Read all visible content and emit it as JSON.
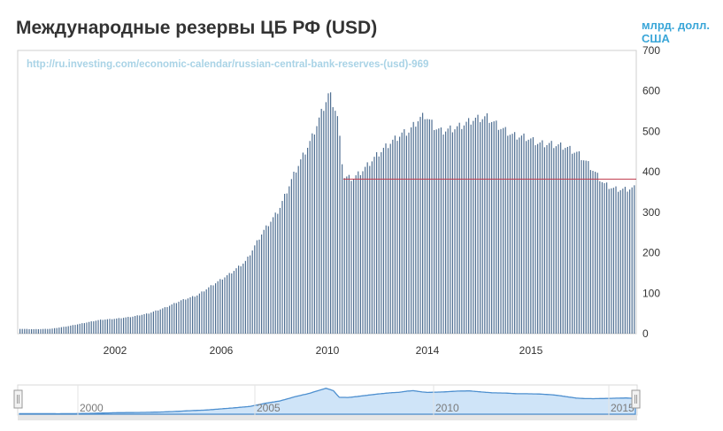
{
  "header": {
    "title": "Международные резервы ЦБ РФ (USD)",
    "unit_line1": "млрд. долл.",
    "unit_line2": "США",
    "watermark": "http://ru.investing.com/economic-calendar/russian-central-bank-reserves-(usd)-969"
  },
  "chart_data": {
    "type": "bar",
    "title": "Международные резервы ЦБ РФ (USD)",
    "ylabel": "млрд. долл. США",
    "ylim": [
      0,
      700
    ],
    "y_ticks": [
      0,
      100,
      200,
      300,
      400,
      500,
      600,
      700
    ],
    "x_ticks": [
      "2002",
      "2006",
      "2010",
      "2014",
      "2015"
    ],
    "x_range_years": [
      1999,
      2018
    ],
    "grid": false,
    "reference_line": {
      "value": 382,
      "color": "#c0394b"
    },
    "anchors": [
      [
        1999.0,
        12
      ],
      [
        1999.5,
        11
      ],
      [
        2000.0,
        12
      ],
      [
        2000.5,
        18
      ],
      [
        2001.0,
        26
      ],
      [
        2001.5,
        34
      ],
      [
        2002.0,
        37
      ],
      [
        2002.5,
        42
      ],
      [
        2003.0,
        50
      ],
      [
        2003.5,
        64
      ],
      [
        2004.0,
        82
      ],
      [
        2004.5,
        95
      ],
      [
        2005.0,
        122
      ],
      [
        2005.5,
        148
      ],
      [
        2006.0,
        180
      ],
      [
        2006.5,
        250
      ],
      [
        2007.0,
        305
      ],
      [
        2007.5,
        400
      ],
      [
        2008.0,
        480
      ],
      [
        2008.55,
        596
      ],
      [
        2008.8,
        540
      ],
      [
        2009.0,
        387
      ],
      [
        2009.3,
        384
      ],
      [
        2009.6,
        405
      ],
      [
        2010.0,
        440
      ],
      [
        2010.4,
        470
      ],
      [
        2010.8,
        495
      ],
      [
        2011.0,
        500
      ],
      [
        2011.3,
        530
      ],
      [
        2011.5,
        540
      ],
      [
        2011.8,
        510
      ],
      [
        2012.0,
        500
      ],
      [
        2012.5,
        510
      ],
      [
        2013.0,
        530
      ],
      [
        2013.4,
        535
      ],
      [
        2013.8,
        510
      ],
      [
        2014.2,
        490
      ],
      [
        2014.6,
        485
      ],
      [
        2015.0,
        470
      ],
      [
        2015.4,
        468
      ],
      [
        2015.8,
        462
      ],
      [
        2016.2,
        445
      ],
      [
        2016.5,
        420
      ],
      [
        2016.8,
        390
      ],
      [
        2017.0,
        370
      ],
      [
        2017.3,
        358
      ],
      [
        2017.6,
        356
      ],
      [
        2017.9,
        360
      ],
      [
        2018.1,
        362
      ],
      [
        2018.4,
        368
      ],
      [
        2018.7,
        372
      ],
      [
        2018.9,
        364
      ]
    ]
  },
  "navigator": {
    "x_ticks": [
      "2000",
      "2005",
      "2010",
      "2015"
    ],
    "left_handle": "range-start-handle",
    "right_handle": "range-end-handle"
  }
}
